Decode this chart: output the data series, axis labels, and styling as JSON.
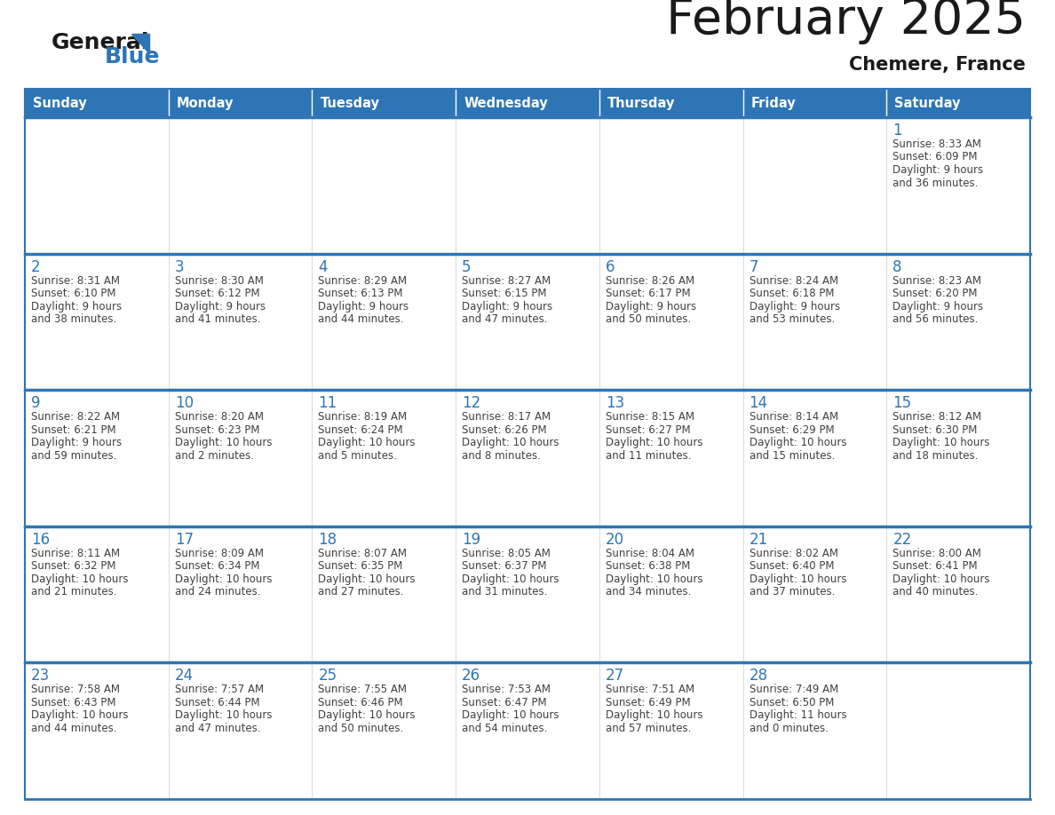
{
  "title": "February 2025",
  "subtitle": "Chemere, France",
  "header_color": "#2e75b6",
  "header_text_color": "#ffffff",
  "day_names": [
    "Sunday",
    "Monday",
    "Tuesday",
    "Wednesday",
    "Thursday",
    "Friday",
    "Saturday"
  ],
  "background_color": "#ffffff",
  "cell_bg": "#ffffff",
  "border_color": "#2e75b6",
  "day_number_color": "#2e75b6",
  "info_text_color": "#404040",
  "calendar": [
    [
      null,
      null,
      null,
      null,
      null,
      null,
      {
        "day": 1,
        "sunrise": "8:33 AM",
        "sunset": "6:09 PM",
        "daylight_line1": "9 hours",
        "daylight_line2": "and 36 minutes."
      }
    ],
    [
      {
        "day": 2,
        "sunrise": "8:31 AM",
        "sunset": "6:10 PM",
        "daylight_line1": "9 hours",
        "daylight_line2": "and 38 minutes."
      },
      {
        "day": 3,
        "sunrise": "8:30 AM",
        "sunset": "6:12 PM",
        "daylight_line1": "9 hours",
        "daylight_line2": "and 41 minutes."
      },
      {
        "day": 4,
        "sunrise": "8:29 AM",
        "sunset": "6:13 PM",
        "daylight_line1": "9 hours",
        "daylight_line2": "and 44 minutes."
      },
      {
        "day": 5,
        "sunrise": "8:27 AM",
        "sunset": "6:15 PM",
        "daylight_line1": "9 hours",
        "daylight_line2": "and 47 minutes."
      },
      {
        "day": 6,
        "sunrise": "8:26 AM",
        "sunset": "6:17 PM",
        "daylight_line1": "9 hours",
        "daylight_line2": "and 50 minutes."
      },
      {
        "day": 7,
        "sunrise": "8:24 AM",
        "sunset": "6:18 PM",
        "daylight_line1": "9 hours",
        "daylight_line2": "and 53 minutes."
      },
      {
        "day": 8,
        "sunrise": "8:23 AM",
        "sunset": "6:20 PM",
        "daylight_line1": "9 hours",
        "daylight_line2": "and 56 minutes."
      }
    ],
    [
      {
        "day": 9,
        "sunrise": "8:22 AM",
        "sunset": "6:21 PM",
        "daylight_line1": "9 hours",
        "daylight_line2": "and 59 minutes."
      },
      {
        "day": 10,
        "sunrise": "8:20 AM",
        "sunset": "6:23 PM",
        "daylight_line1": "10 hours",
        "daylight_line2": "and 2 minutes."
      },
      {
        "day": 11,
        "sunrise": "8:19 AM",
        "sunset": "6:24 PM",
        "daylight_line1": "10 hours",
        "daylight_line2": "and 5 minutes."
      },
      {
        "day": 12,
        "sunrise": "8:17 AM",
        "sunset": "6:26 PM",
        "daylight_line1": "10 hours",
        "daylight_line2": "and 8 minutes."
      },
      {
        "day": 13,
        "sunrise": "8:15 AM",
        "sunset": "6:27 PM",
        "daylight_line1": "10 hours",
        "daylight_line2": "and 11 minutes."
      },
      {
        "day": 14,
        "sunrise": "8:14 AM",
        "sunset": "6:29 PM",
        "daylight_line1": "10 hours",
        "daylight_line2": "and 15 minutes."
      },
      {
        "day": 15,
        "sunrise": "8:12 AM",
        "sunset": "6:30 PM",
        "daylight_line1": "10 hours",
        "daylight_line2": "and 18 minutes."
      }
    ],
    [
      {
        "day": 16,
        "sunrise": "8:11 AM",
        "sunset": "6:32 PM",
        "daylight_line1": "10 hours",
        "daylight_line2": "and 21 minutes."
      },
      {
        "day": 17,
        "sunrise": "8:09 AM",
        "sunset": "6:34 PM",
        "daylight_line1": "10 hours",
        "daylight_line2": "and 24 minutes."
      },
      {
        "day": 18,
        "sunrise": "8:07 AM",
        "sunset": "6:35 PM",
        "daylight_line1": "10 hours",
        "daylight_line2": "and 27 minutes."
      },
      {
        "day": 19,
        "sunrise": "8:05 AM",
        "sunset": "6:37 PM",
        "daylight_line1": "10 hours",
        "daylight_line2": "and 31 minutes."
      },
      {
        "day": 20,
        "sunrise": "8:04 AM",
        "sunset": "6:38 PM",
        "daylight_line1": "10 hours",
        "daylight_line2": "and 34 minutes."
      },
      {
        "day": 21,
        "sunrise": "8:02 AM",
        "sunset": "6:40 PM",
        "daylight_line1": "10 hours",
        "daylight_line2": "and 37 minutes."
      },
      {
        "day": 22,
        "sunrise": "8:00 AM",
        "sunset": "6:41 PM",
        "daylight_line1": "10 hours",
        "daylight_line2": "and 40 minutes."
      }
    ],
    [
      {
        "day": 23,
        "sunrise": "7:58 AM",
        "sunset": "6:43 PM",
        "daylight_line1": "10 hours",
        "daylight_line2": "and 44 minutes."
      },
      {
        "day": 24,
        "sunrise": "7:57 AM",
        "sunset": "6:44 PM",
        "daylight_line1": "10 hours",
        "daylight_line2": "and 47 minutes."
      },
      {
        "day": 25,
        "sunrise": "7:55 AM",
        "sunset": "6:46 PM",
        "daylight_line1": "10 hours",
        "daylight_line2": "and 50 minutes."
      },
      {
        "day": 26,
        "sunrise": "7:53 AM",
        "sunset": "6:47 PM",
        "daylight_line1": "10 hours",
        "daylight_line2": "and 54 minutes."
      },
      {
        "day": 27,
        "sunrise": "7:51 AM",
        "sunset": "6:49 PM",
        "daylight_line1": "10 hours",
        "daylight_line2": "and 57 minutes."
      },
      {
        "day": 28,
        "sunrise": "7:49 AM",
        "sunset": "6:50 PM",
        "daylight_line1": "11 hours",
        "daylight_line2": "and 0 minutes."
      },
      null
    ]
  ],
  "logo_general_color": "#1a1a1a",
  "logo_blue_color": "#2e75b6",
  "title_color": "#1a1a1a",
  "subtitle_color": "#1a1a1a"
}
